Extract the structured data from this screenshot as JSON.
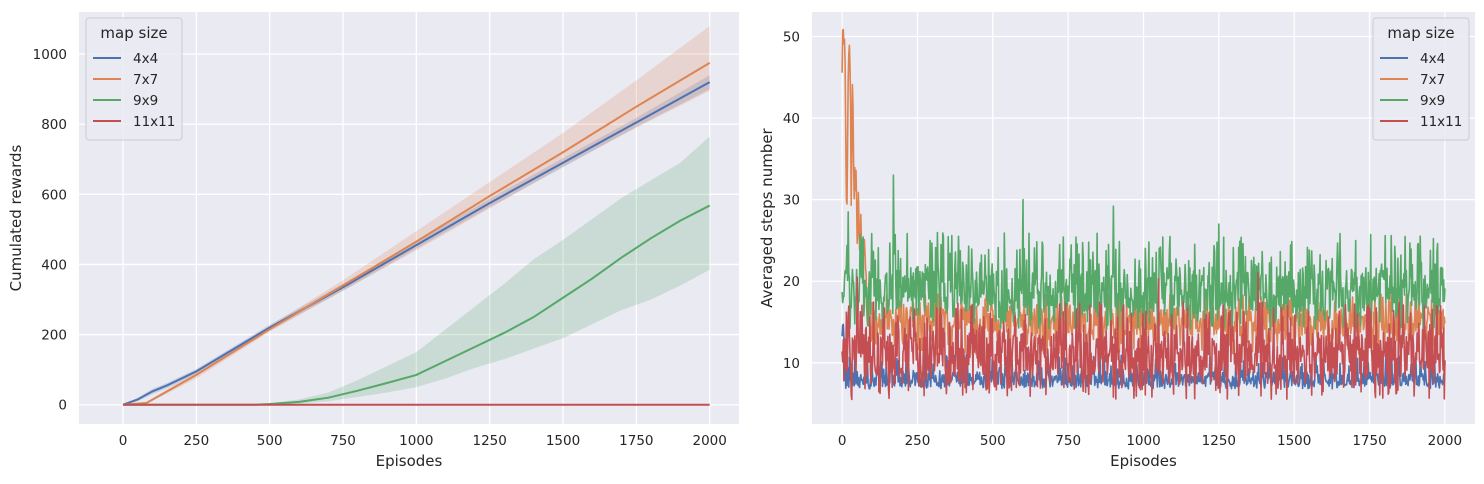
{
  "figure": {
    "background": "#ffffff",
    "panel_background": "#eaeaf2",
    "grid_color": "#ffffff"
  },
  "chart_data": [
    {
      "type": "line",
      "xlabel": "Episodes",
      "ylabel": "Cumulated rewards",
      "xlim": [
        -150,
        2100
      ],
      "ylim": [
        -55,
        1120
      ],
      "xticks": [
        0,
        250,
        500,
        750,
        1000,
        1250,
        1500,
        1750,
        2000
      ],
      "xtick_labels": [
        "0",
        "250",
        "500",
        "750",
        "1000",
        "1250",
        "1500",
        "1750",
        "2000"
      ],
      "yticks": [
        0,
        200,
        400,
        600,
        800,
        1000
      ],
      "ytick_labels": [
        "0",
        "200",
        "400",
        "600",
        "800",
        "1000"
      ],
      "grid": true,
      "legend": {
        "title": "map size",
        "placement": "top-left"
      },
      "series": [
        {
          "name": "4x4",
          "color": "#4c72b0",
          "x": [
            0,
            50,
            100,
            150,
            250,
            500,
            750,
            1000,
            1250,
            1500,
            1750,
            2000
          ],
          "y": [
            0,
            15,
            38,
            55,
            95,
            220,
            335,
            455,
            575,
            690,
            805,
            920
          ],
          "band_lower": [
            0,
            10,
            30,
            47,
            88,
            212,
            325,
            445,
            563,
            677,
            792,
            900
          ],
          "band_upper": [
            0,
            20,
            45,
            62,
            102,
            228,
            345,
            465,
            587,
            703,
            818,
            940
          ]
        },
        {
          "name": "7x7",
          "color": "#dd8452",
          "x": [
            0,
            80,
            250,
            500,
            750,
            1000,
            1250,
            1500,
            1750,
            2000
          ],
          "y": [
            0,
            5,
            85,
            215,
            340,
            465,
            595,
            720,
            850,
            975
          ],
          "band_lower": [
            0,
            2,
            75,
            208,
            325,
            440,
            560,
            680,
            790,
            895
          ],
          "band_upper": [
            0,
            8,
            95,
            225,
            355,
            495,
            635,
            775,
            925,
            1080
          ]
        },
        {
          "name": "9x9",
          "color": "#55a868",
          "x": [
            0,
            450,
            500,
            600,
            700,
            800,
            900,
            1000,
            1100,
            1200,
            1300,
            1400,
            1500,
            1600,
            1700,
            1800,
            1900,
            2000
          ],
          "y": [
            0,
            0,
            2,
            8,
            20,
            40,
            62,
            85,
            125,
            165,
            205,
            250,
            305,
            360,
            420,
            475,
            525,
            568
          ],
          "band_lower": [
            0,
            0,
            0,
            3,
            10,
            22,
            35,
            50,
            75,
            105,
            130,
            160,
            190,
            230,
            270,
            300,
            340,
            385
          ],
          "band_upper": [
            0,
            0,
            4,
            15,
            35,
            70,
            110,
            150,
            215,
            280,
            345,
            415,
            470,
            530,
            590,
            640,
            690,
            765
          ]
        },
        {
          "name": "11x11",
          "color": "#c44e52",
          "x": [
            0,
            2000
          ],
          "y": [
            0,
            0
          ],
          "band_lower": [
            0,
            0
          ],
          "band_upper": [
            0,
            0
          ]
        }
      ]
    },
    {
      "type": "line",
      "xlabel": "Episodes",
      "ylabel": "Averaged steps number",
      "xlim": [
        -100,
        2100
      ],
      "ylim": [
        2.5,
        53
      ],
      "xticks": [
        0,
        250,
        500,
        750,
        1000,
        1250,
        1500,
        1750,
        2000
      ],
      "xtick_labels": [
        "0",
        "250",
        "500",
        "750",
        "1000",
        "1250",
        "1500",
        "1750",
        "2000"
      ],
      "yticks": [
        10,
        20,
        30,
        40,
        50
      ],
      "ytick_labels": [
        "10",
        "20",
        "30",
        "40",
        "50"
      ],
      "grid": true,
      "legend": {
        "title": "map size",
        "placement": "top-right"
      },
      "series": [
        {
          "name": "4x4",
          "color": "#4c72b0",
          "mean": 8.0,
          "noise_low": 6.8,
          "noise_high": 11.0,
          "initial": 15.5
        },
        {
          "name": "7x7",
          "color": "#dd8452",
          "mean": 15.0,
          "noise_low": 11.0,
          "noise_high": 18.5,
          "initial_x": [
            0,
            5,
            10,
            15,
            20,
            25,
            30,
            35,
            40,
            45,
            50,
            55,
            60,
            65,
            70,
            75,
            80
          ],
          "initial_y": [
            48,
            50,
            45,
            28,
            42,
            51,
            32,
            44,
            30,
            33,
            27,
            31,
            24,
            27,
            22,
            25,
            19
          ]
        },
        {
          "name": "9x9",
          "color": "#55a868",
          "mean": 19.0,
          "noise_low": 14.0,
          "noise_high": 26.0,
          "peaks_x": [
            20,
            170,
            600,
            900,
            1250,
            1910
          ],
          "peaks_y": [
            28.5,
            33.0,
            30.0,
            29.2,
            27.0,
            24.5
          ]
        },
        {
          "name": "11x11",
          "color": "#c44e52",
          "mean": 11.0,
          "noise_low": 5.5,
          "noise_high": 17.5,
          "peaks_x": [
            50,
            1050,
            1380
          ],
          "peaks_y": [
            20.5,
            20.3,
            21.0
          ]
        }
      ]
    }
  ]
}
